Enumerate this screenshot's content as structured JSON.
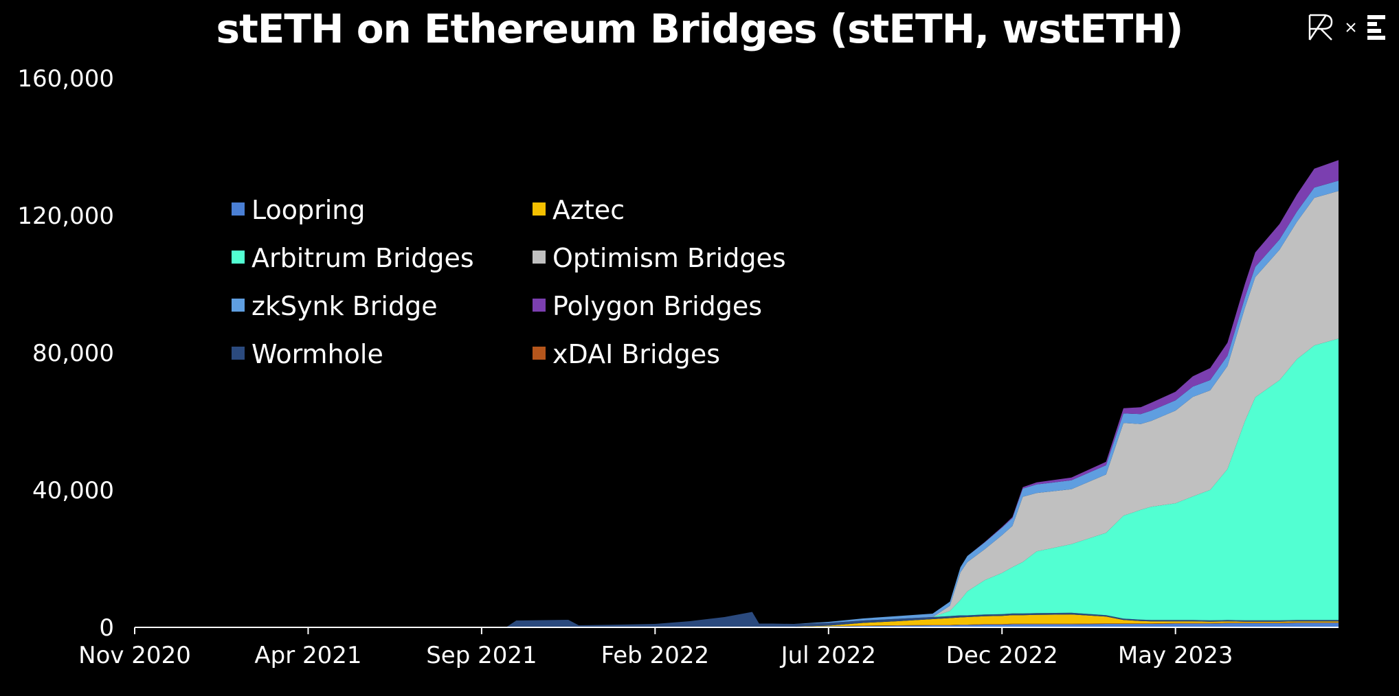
{
  "chart_data": {
    "type": "area",
    "title": "stETH on Ethereum Bridges (stETH, wstETH)",
    "xlabel": "",
    "ylabel": "",
    "ylim": [
      0,
      160000
    ],
    "y_ticks": [
      "0",
      "40,000",
      "80,000",
      "120,000",
      "160,000"
    ],
    "y_tick_values": [
      0,
      40000,
      80000,
      120000,
      160000
    ],
    "x_ticks": [
      "Nov 2020",
      "Apr 2021",
      "Sep 2021",
      "Feb 2022",
      "Jul 2022",
      "Dec 2022",
      "May 2023"
    ],
    "x_tick_months": [
      0,
      5,
      10,
      15,
      20,
      25,
      30
    ],
    "x_range_months": [
      0,
      34.7
    ],
    "legend": [
      {
        "name": "Loopring",
        "color": "#4a7fd4"
      },
      {
        "name": "Aztec",
        "color": "#f5c000"
      },
      {
        "name": "Arbitrum Bridges",
        "color": "#52ffd2"
      },
      {
        "name": "Optimism Bridges",
        "color": "#c0c0c0"
      },
      {
        "name": "zkSynk Bridge",
        "color": "#5f9ee0"
      },
      {
        "name": "Polygon Bridges",
        "color": "#7b3fb0"
      },
      {
        "name": "Wormhole",
        "color": "#2b4a7e"
      },
      {
        "name": "xDAI Bridges",
        "color": "#b5561c"
      }
    ],
    "stack_order": [
      "Loopring",
      "xDAI Bridges",
      "Aztec",
      "Wormhole",
      "Arbitrum Bridges",
      "Optimism Bridges",
      "zkSynk Bridge",
      "Polygon Bridges"
    ],
    "x": [
      0,
      5,
      10.7,
      11,
      12.5,
      12.8,
      14,
      15,
      16,
      17,
      17.8,
      18,
      18.4,
      19,
      20,
      21,
      22,
      23,
      23.5,
      23.8,
      24,
      24.5,
      25,
      25.3,
      25.6,
      26,
      27,
      28,
      28.5,
      29,
      29.3,
      30,
      30.5,
      31,
      31.5,
      32,
      32.3,
      33,
      33.5,
      34,
      34.7
    ],
    "series": [
      {
        "name": "Loopring",
        "values": [
          0,
          0,
          0,
          0,
          0,
          0,
          0,
          0,
          0,
          0,
          0,
          100,
          200,
          200,
          300,
          400,
          500,
          600,
          600,
          700,
          700,
          800,
          800,
          900,
          900,
          900,
          900,
          1000,
          1000,
          1000,
          1000,
          1100,
          1100,
          1100,
          1200,
          1200,
          1200,
          1200,
          1300,
          1300,
          1300
        ]
      },
      {
        "name": "xDAI Bridges",
        "values": [
          0,
          0,
          0,
          0,
          0,
          0,
          0,
          0,
          0,
          0,
          0,
          0,
          0,
          0,
          0,
          100,
          100,
          100,
          100,
          100,
          100,
          150,
          150,
          150,
          150,
          150,
          150,
          150,
          150,
          150,
          150,
          150,
          150,
          150,
          150,
          150,
          150,
          150,
          150,
          150,
          150
        ]
      },
      {
        "name": "Aztec",
        "values": [
          0,
          0,
          0,
          0,
          0,
          0,
          0,
          0,
          0,
          0,
          0,
          0,
          0,
          0,
          200,
          800,
          1200,
          1700,
          2000,
          2100,
          2200,
          2300,
          2400,
          2500,
          2500,
          2600,
          2700,
          2000,
          1000,
          700,
          600,
          500,
          500,
          400,
          400,
          300,
          300,
          300,
          300,
          300,
          300
        ]
      },
      {
        "name": "Wormhole",
        "values": [
          0,
          0,
          0,
          2000,
          2200,
          600,
          800,
          1000,
          1800,
          3000,
          4500,
          1000,
          900,
          800,
          800,
          700,
          700,
          600,
          600,
          600,
          500,
          500,
          500,
          500,
          500,
          500,
          500,
          400,
          400,
          400,
          400,
          400,
          400,
          400,
          400,
          400,
          400,
          400,
          400,
          400,
          400
        ]
      },
      {
        "name": "Arbitrum Bridges",
        "values": [
          0,
          0,
          0,
          0,
          0,
          0,
          0,
          0,
          0,
          0,
          0,
          0,
          0,
          0,
          0,
          0,
          0,
          0,
          1500,
          4500,
          7000,
          10000,
          12000,
          13500,
          15000,
          18000,
          20000,
          24000,
          30000,
          32000,
          33000,
          34000,
          36000,
          38000,
          44000,
          58000,
          65000,
          70000,
          76000,
          80000,
          82000
        ]
      },
      {
        "name": "Optimism Bridges",
        "values": [
          0,
          0,
          0,
          0,
          0,
          0,
          0,
          0,
          0,
          0,
          0,
          0,
          0,
          0,
          0,
          0,
          0,
          0,
          1500,
          8000,
          8500,
          9000,
          11000,
          12000,
          19000,
          17000,
          16000,
          17000,
          27000,
          25000,
          25000,
          27000,
          29000,
          29000,
          30000,
          33000,
          35000,
          38000,
          40000,
          43000,
          43000
        ]
      },
      {
        "name": "zkSynk Bridge",
        "values": [
          0,
          0,
          0,
          0,
          0,
          0,
          0,
          0,
          0,
          0,
          0,
          0,
          0,
          0,
          300,
          600,
          800,
          1000,
          1200,
          1500,
          1800,
          2000,
          2200,
          2300,
          2400,
          2500,
          2600,
          2700,
          2800,
          2900,
          3000,
          3000,
          3000,
          3000,
          3000,
          3000,
          3000,
          3000,
          3000,
          3000,
          3000
        ]
      },
      {
        "name": "Polygon Bridges",
        "values": [
          0,
          0,
          0,
          0,
          0,
          0,
          0,
          0,
          0,
          0,
          0,
          0,
          0,
          0,
          0,
          0,
          0,
          0,
          0,
          0,
          0,
          100,
          200,
          300,
          400,
          600,
          800,
          1000,
          1500,
          2000,
          2300,
          2500,
          3000,
          3500,
          3800,
          4000,
          4200,
          4500,
          5000,
          5500,
          6000
        ]
      }
    ]
  }
}
